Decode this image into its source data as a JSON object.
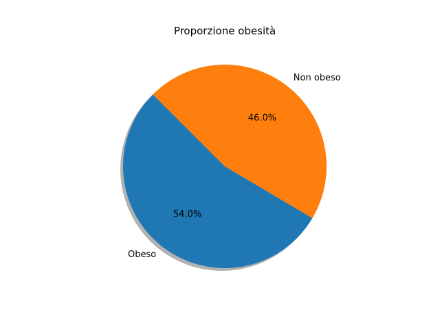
{
  "chart_data": {
    "type": "pie",
    "title": "Proporzione obesità",
    "start_angle_deg": 135,
    "shadow": true,
    "slices": [
      {
        "label": "Obeso",
        "value": 54.0,
        "pct_label": "54.0%",
        "color": "#1f77b4"
      },
      {
        "label": "Non obeso",
        "value": 46.0,
        "pct_label": "46.0%",
        "color": "#ff7f0e"
      }
    ]
  }
}
